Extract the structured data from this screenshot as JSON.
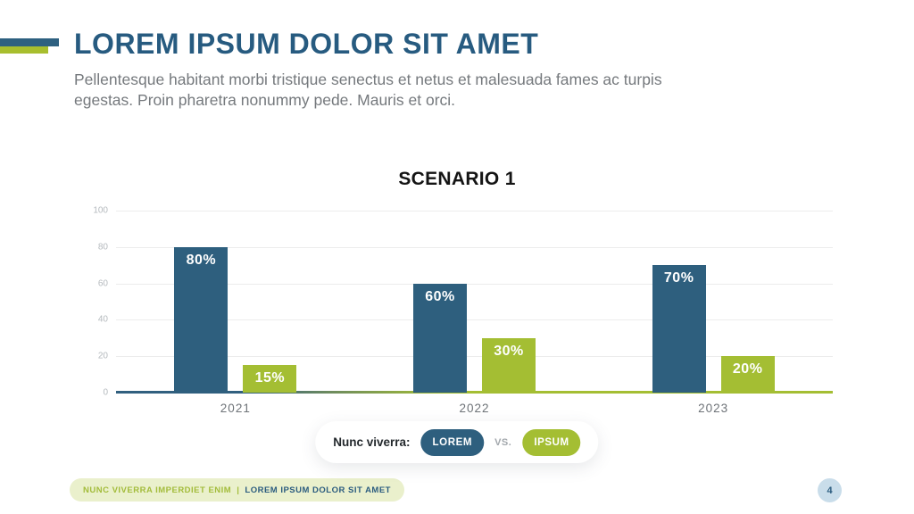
{
  "slide": {
    "title": "LOREM IPSUM DOLOR SIT AMET",
    "subtitle_lines": [
      "Pellentesque habitant morbi tristique senectus et netus et malesuada fames ac turpis",
      "egestas. Proin pharetra nonummy pede. Mauris et orci."
    ],
    "page_number": "4"
  },
  "legend": {
    "label": "Nunc viverra:",
    "series1": "LOREM",
    "vs": "VS.",
    "series2": "IPSUM"
  },
  "footer": {
    "left": "NUNC VIVERRA IMPERDIET ENIM",
    "separator": "|",
    "right": "LOREM IPSUM DOLOR SIT AMET"
  },
  "chart_data": {
    "type": "bar",
    "title": "SCENARIO 1",
    "categories": [
      "2021",
      "2022",
      "2023"
    ],
    "series": [
      {
        "name": "LOREM",
        "color": "#2E5F7E",
        "values": [
          80,
          60,
          70
        ],
        "value_labels": [
          "80%",
          "60%",
          "70%"
        ]
      },
      {
        "name": "IPSUM",
        "color": "#A4BE33",
        "values": [
          15,
          30,
          20
        ],
        "value_labels": [
          "15%",
          "30%",
          "20%"
        ]
      }
    ],
    "xlabel": "",
    "ylabel": "",
    "ylim": [
      0,
      100
    ],
    "yticks": [
      100,
      80,
      60,
      40,
      20,
      0
    ],
    "grid": true,
    "legend_position": "bottom-center"
  },
  "colors": {
    "title_blue": "#275B80",
    "bar_blue": "#2E5F7E",
    "bar_green": "#A4BE33",
    "accent_blue": "#2E6080",
    "accent_green": "#A8BE2E",
    "subtitle_gray": "#75797D",
    "footer_bg": "#EAF0CC",
    "footer_green": "#A3BC3B",
    "page_badge_bg": "#C9DDEA",
    "gridline": "#ECECEC"
  }
}
